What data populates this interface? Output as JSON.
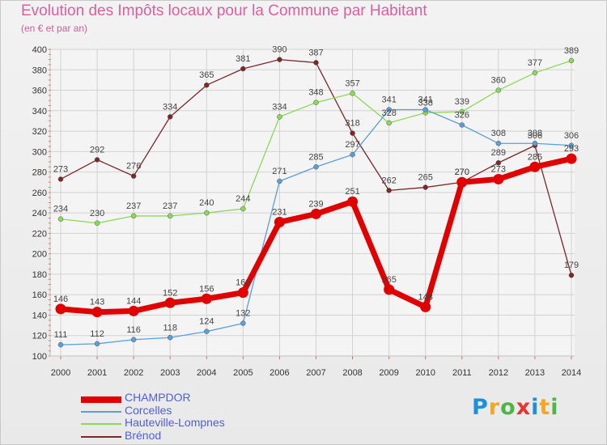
{
  "title": "Evolution des Impôts locaux pour la Commune par Habitant",
  "subtitle": "(en € et par an)",
  "logo": {
    "letters": [
      "P",
      "r",
      "o",
      "x",
      "i",
      "t",
      "i"
    ],
    "colors": [
      "#1f8fd8",
      "#f5a623",
      "#4cb648",
      "#e8342f",
      "#1f8fd8",
      "#f5a623",
      "#4cb648"
    ]
  },
  "chart_data": {
    "type": "line",
    "title": "Evolution des Impôts locaux pour la Commune par Habitant",
    "subtitle": "(en € et par an)",
    "x": [
      "2000",
      "2001",
      "2002",
      "2003",
      "2004",
      "2005",
      "2006",
      "2007",
      "2008",
      "2009",
      "2010",
      "2011",
      "2012",
      "2013",
      "2014"
    ],
    "ylim": [
      100,
      400
    ],
    "yticks": [
      "100",
      "120",
      "140",
      "160",
      "180",
      "200",
      "220",
      "240",
      "260",
      "280",
      "300",
      "320",
      "340",
      "360",
      "380",
      "400"
    ],
    "grid": true,
    "series": [
      {
        "name": "CHAMPDOR",
        "color": "#e00000",
        "values": [
          146,
          143,
          144,
          152,
          156,
          162,
          231,
          239,
          251,
          165,
          148,
          270,
          273,
          285,
          293
        ],
        "labels": [
          "146",
          "143",
          "144",
          "152",
          "156",
          "162",
          "231",
          "239",
          "251",
          "165",
          "148",
          "270",
          "273",
          "285",
          "293"
        ]
      },
      {
        "name": "Corcelles",
        "color": "#5b9fd8",
        "values": [
          111,
          112,
          116,
          118,
          124,
          132,
          271,
          285,
          297,
          341,
          341,
          326,
          308,
          308,
          306
        ],
        "labels": [
          "111",
          "112",
          "116",
          "118",
          "124",
          "132",
          "271",
          "285",
          "297",
          "341",
          "341",
          "326",
          "308",
          "308",
          "306"
        ]
      },
      {
        "name": "Hauteville-Lompnes",
        "color": "#8cd858",
        "values": [
          234,
          230,
          237,
          237,
          240,
          244,
          334,
          348,
          357,
          328,
          338,
          339,
          360,
          377,
          389
        ],
        "labels": [
          "234",
          "230",
          "237",
          "237",
          "240",
          "244",
          "334",
          "348",
          "357",
          "328",
          "338",
          "339",
          "360",
          "377",
          "389"
        ]
      },
      {
        "name": "Brénod",
        "color": "#7a2828",
        "values": [
          273,
          292,
          276,
          334,
          365,
          381,
          390,
          387,
          318,
          262,
          265,
          270,
          289,
          306,
          179
        ],
        "labels": [
          "273",
          "292",
          "276",
          "334",
          "365",
          "381",
          "390",
          "387",
          "318",
          "262",
          "265",
          "270",
          "289",
          "306",
          "179"
        ]
      }
    ]
  }
}
